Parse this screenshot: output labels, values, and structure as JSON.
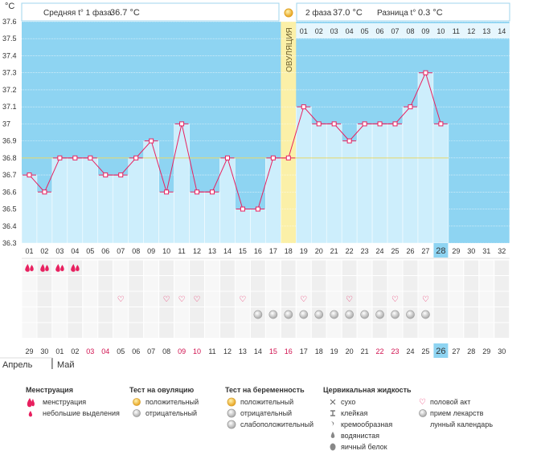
{
  "header": {
    "unit": "°C",
    "phase1_label": "Средняя t° 1 фаза",
    "phase1_value": "36.7 °C",
    "phase2_label": "2 фаза",
    "phase2_value": "37.0 °C",
    "diff_label": "Разница t°",
    "diff_value": "0.3 °C",
    "ovulation_label": "ОВУЛЯЦИЯ"
  },
  "chart_data": {
    "type": "line",
    "title": "",
    "ylabel": "°C",
    "xlabel": "",
    "ylim": [
      36.3,
      37.6
    ],
    "y_ticks": [
      "36.3",
      "36.4",
      "36.5",
      "36.6",
      "36.7",
      "36.8",
      "36.9",
      "37",
      "37.1",
      "37.2",
      "37.3",
      "37.4",
      "37.5",
      "37.6"
    ],
    "cover_line": 36.8,
    "ovulation_day": 18,
    "today_day": 28,
    "cycle_days": [
      "01",
      "02",
      "03",
      "04",
      "05",
      "06",
      "07",
      "08",
      "09",
      "10",
      "11",
      "12",
      "13",
      "14",
      "15",
      "16",
      "17",
      "18",
      "19",
      "20",
      "21",
      "22",
      "23",
      "24",
      "25",
      "26",
      "27",
      "28",
      "29",
      "30",
      "31",
      "32"
    ],
    "phase2_days": [
      "01",
      "02",
      "03",
      "04",
      "05",
      "06",
      "07",
      "08",
      "09",
      "10",
      "11",
      "12",
      "13",
      "14"
    ],
    "calendar_dates": [
      "29",
      "30",
      "01",
      "02",
      "03",
      "04",
      "05",
      "06",
      "07",
      "08",
      "09",
      "10",
      "11",
      "12",
      "13",
      "14",
      "15",
      "16",
      "17",
      "18",
      "19",
      "20",
      "21",
      "22",
      "23",
      "24",
      "25",
      "26",
      "27",
      "28",
      "29",
      "30"
    ],
    "weekend_dates": [
      false,
      false,
      false,
      false,
      true,
      true,
      false,
      false,
      false,
      false,
      true,
      true,
      false,
      false,
      false,
      false,
      true,
      true,
      false,
      false,
      false,
      false,
      false,
      true,
      true,
      false,
      false,
      false,
      false,
      false,
      false,
      false
    ],
    "series": [
      {
        "name": "Базальная температура",
        "values": [
          36.7,
          36.6,
          36.8,
          36.8,
          36.8,
          36.7,
          36.7,
          36.8,
          36.9,
          36.6,
          37.0,
          36.6,
          36.6,
          36.8,
          36.5,
          36.5,
          36.8,
          36.8,
          37.1,
          37.0,
          37.0,
          36.9,
          37.0,
          37.0,
          37.0,
          37.1,
          37.3,
          37.0
        ]
      }
    ],
    "months": [
      "Апрель",
      "Май"
    ],
    "menstruation_days": [
      1,
      2,
      3,
      4
    ],
    "sex_days": [
      7,
      10,
      11,
      12,
      15,
      19,
      22,
      25,
      27
    ],
    "medicine_days": [
      16,
      17,
      18,
      19,
      20,
      21,
      22,
      23,
      24,
      25,
      26,
      27
    ]
  },
  "legend": {
    "menstruation": {
      "title": "Менструация",
      "items": [
        "менструация",
        "небольшие выделения"
      ]
    },
    "ovulation_test": {
      "title": "Тест на овуляцию",
      "items": [
        "положительный",
        "отрицательный"
      ]
    },
    "pregnancy_test": {
      "title": "Тест на беременность",
      "items": [
        "положительный",
        "отрицательный",
        "слабоположительный"
      ]
    },
    "cervical": {
      "title": "Цервикальная жидкость",
      "items": [
        "сухо",
        "клейкая",
        "кремообразная",
        "водянистая",
        "яичный белок"
      ]
    },
    "other": {
      "items": [
        "половой акт",
        "прием лекарств",
        "лунный календарь"
      ]
    }
  },
  "colors": {
    "bg_blue": "#8ed4f2",
    "column": "#cdeefc",
    "ovulation": "#fbf0a8",
    "line": "#e8205f",
    "weekend": "#d0114f",
    "today": "#8ed4f2"
  }
}
